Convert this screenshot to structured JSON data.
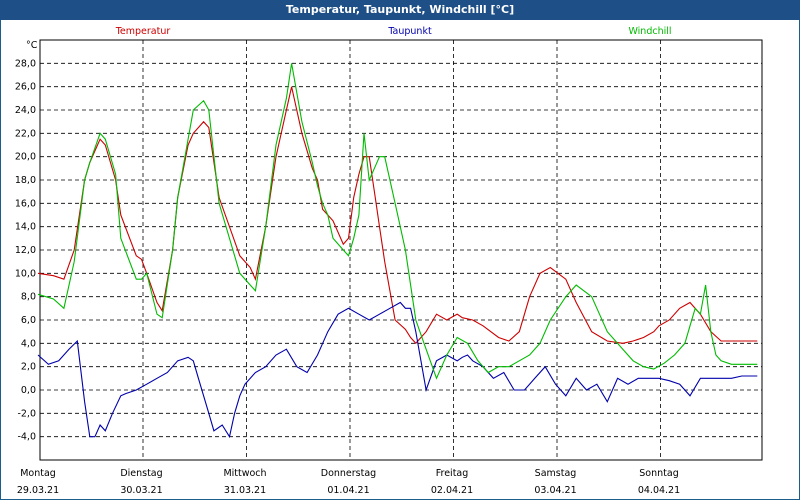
{
  "window": {
    "title": "Temperatur, Taupunkt, Windchill [°C]"
  },
  "chart_data": {
    "type": "line",
    "title": "Temperatur, Taupunkt, Windchill [°C]",
    "ylabel": "°C",
    "ylim": [
      -6,
      30
    ],
    "xlim": [
      0,
      7
    ],
    "grid": true,
    "yticks": [
      "28,0",
      "26,0",
      "24,0",
      "22,0",
      "20,0",
      "18,0",
      "16,0",
      "14,0",
      "12,0",
      "10,0",
      "8,0",
      "6,0",
      "4,0",
      "2,0",
      "0,0",
      "-2,0",
      "-4,0"
    ],
    "ytick_values": [
      28,
      26,
      24,
      22,
      20,
      18,
      16,
      14,
      12,
      10,
      8,
      6,
      4,
      2,
      0,
      -2,
      -4
    ],
    "xtick_days": [
      "Montag",
      "Dienstag",
      "Mittwoch",
      "Donnerstag",
      "Freitag",
      "Samstag",
      "Sonntag"
    ],
    "xtick_dates": [
      "29.03.21",
      "30.03.21",
      "31.03.21",
      "01.04.21",
      "02.04.21",
      "03.04.21",
      "04.04.21"
    ],
    "series": [
      {
        "name": "Temperatur",
        "color": "#cc0000",
        "x": [
          0,
          0.15,
          0.25,
          0.35,
          0.45,
          0.5,
          0.6,
          0.65,
          0.75,
          0.8,
          0.95,
          1.0,
          1.05,
          1.15,
          1.2,
          1.3,
          1.35,
          1.45,
          1.5,
          1.6,
          1.65,
          1.75,
          1.95,
          2.05,
          2.1,
          2.2,
          2.3,
          2.4,
          2.45,
          2.55,
          2.65,
          2.7,
          2.75,
          2.85,
          2.95,
          3.0,
          3.05,
          3.1,
          3.15,
          3.2,
          3.25,
          3.3,
          3.35,
          3.45,
          3.55,
          3.6,
          3.65,
          3.75,
          3.85,
          3.95,
          4.05,
          4.1,
          4.2,
          4.3,
          4.45,
          4.55,
          4.65,
          4.75,
          4.85,
          4.95,
          5.1,
          5.2,
          5.35,
          5.5,
          5.65,
          5.75,
          5.85,
          5.95,
          6.0,
          6.1,
          6.2,
          6.3,
          6.4,
          6.5,
          6.6,
          6.7,
          6.8,
          6.9,
          6.95
        ],
        "values": [
          10,
          9.8,
          9.5,
          12,
          18,
          19.5,
          21.5,
          21,
          18,
          15,
          11.5,
          11.2,
          10,
          7.5,
          6.8,
          12,
          16.5,
          21,
          22,
          23,
          22.5,
          16.5,
          11.5,
          10.5,
          9.5,
          14,
          20,
          24,
          26,
          22,
          19,
          18,
          15.5,
          14.5,
          12.5,
          13,
          16.5,
          18.5,
          20,
          20,
          17,
          14,
          11,
          6,
          5.2,
          4.5,
          4,
          5,
          6.5,
          6,
          6.5,
          6.2,
          6,
          5.5,
          4.5,
          4.2,
          5,
          8,
          10,
          10.5,
          9.5,
          7.5,
          5,
          4.2,
          4,
          4.2,
          4.5,
          5,
          5.5,
          6,
          7,
          7.5,
          6.5,
          5,
          4.2,
          4.2,
          4.2,
          4.2,
          4.2
        ]
      },
      {
        "name": "Taupunkt",
        "color": "#0000aa",
        "x": [
          0,
          0.1,
          0.2,
          0.3,
          0.38,
          0.45,
          0.5,
          0.55,
          0.6,
          0.65,
          0.72,
          0.8,
          0.85,
          0.95,
          1.05,
          1.15,
          1.25,
          1.35,
          1.45,
          1.5,
          1.55,
          1.65,
          1.7,
          1.78,
          1.85,
          1.9,
          1.95,
          2.0,
          2.1,
          2.2,
          2.3,
          2.4,
          2.5,
          2.6,
          2.7,
          2.8,
          2.9,
          3.0,
          3.1,
          3.2,
          3.3,
          3.4,
          3.5,
          3.55,
          3.6,
          3.65,
          3.75,
          3.85,
          3.95,
          4.05,
          4.1,
          4.15,
          4.2,
          4.3,
          4.4,
          4.5,
          4.6,
          4.7,
          4.8,
          4.9,
          5.0,
          5.1,
          5.2,
          5.3,
          5.4,
          5.5,
          5.6,
          5.7,
          5.8,
          5.9,
          6.0,
          6.1,
          6.2,
          6.3,
          6.4,
          6.5,
          6.6,
          6.7,
          6.8,
          6.9,
          6.95
        ],
        "values": [
          3,
          2.2,
          2.5,
          3.5,
          4.2,
          -1,
          -4,
          -4,
          -3,
          -3.5,
          -2,
          -0.5,
          -0.3,
          0,
          0.5,
          1,
          1.5,
          2.5,
          2.8,
          2.5,
          1,
          -2,
          -3.5,
          -3,
          -4,
          -2,
          -0.5,
          0.5,
          1.5,
          2,
          3,
          3.5,
          2,
          1.5,
          3,
          5,
          6.5,
          7,
          6.5,
          6,
          6.5,
          7,
          7.5,
          7,
          7,
          5,
          0,
          2.5,
          3,
          2.5,
          2.8,
          3,
          2.5,
          2,
          1,
          1.5,
          0,
          0,
          1,
          2,
          0.5,
          -0.5,
          1,
          0,
          0.5,
          -1,
          1,
          0.5,
          1,
          1,
          1,
          0.8,
          0.5,
          -0.5,
          1,
          1,
          1,
          1,
          1.2,
          1.2,
          1.2
        ]
      },
      {
        "name": "Windchill",
        "color": "#00bb00",
        "x": [
          0,
          0.15,
          0.25,
          0.35,
          0.45,
          0.5,
          0.6,
          0.65,
          0.75,
          0.8,
          0.95,
          1.0,
          1.05,
          1.15,
          1.2,
          1.3,
          1.35,
          1.45,
          1.5,
          1.6,
          1.65,
          1.75,
          1.95,
          2.05,
          2.1,
          2.2,
          2.3,
          2.4,
          2.45,
          2.55,
          2.65,
          2.7,
          2.75,
          2.8,
          2.85,
          2.95,
          3.0,
          3.05,
          3.1,
          3.15,
          3.2,
          3.25,
          3.3,
          3.35,
          3.45,
          3.55,
          3.6,
          3.65,
          3.75,
          3.85,
          3.95,
          4.05,
          4.15,
          4.25,
          4.35,
          4.45,
          4.55,
          4.65,
          4.75,
          4.85,
          4.95,
          5.1,
          5.2,
          5.35,
          5.5,
          5.65,
          5.75,
          5.85,
          5.95,
          6.05,
          6.15,
          6.25,
          6.3,
          6.35,
          6.4,
          6.45,
          6.5,
          6.55,
          6.6,
          6.7,
          6.8,
          6.95
        ],
        "values": [
          8.2,
          7.8,
          7,
          11,
          18,
          19.5,
          22,
          21.5,
          18.5,
          13,
          9.5,
          9.5,
          10,
          6.5,
          6.2,
          12,
          16.5,
          21.5,
          24,
          24.8,
          24,
          16,
          10,
          9,
          8.5,
          14,
          21,
          25,
          28,
          23,
          19.5,
          17.5,
          16,
          15,
          13,
          12,
          11.5,
          13,
          15,
          22,
          18,
          19,
          20,
          20,
          16,
          12,
          9,
          6,
          3.5,
          1,
          3,
          4.5,
          4,
          2.5,
          1.5,
          2,
          2,
          2.5,
          3,
          4,
          6,
          8,
          9,
          8,
          5,
          3.5,
          2.5,
          2,
          1.8,
          2.3,
          3,
          4,
          5.5,
          7,
          6.5,
          9,
          5,
          3,
          2.5,
          2.2,
          2.2,
          2.2
        ]
      }
    ]
  }
}
